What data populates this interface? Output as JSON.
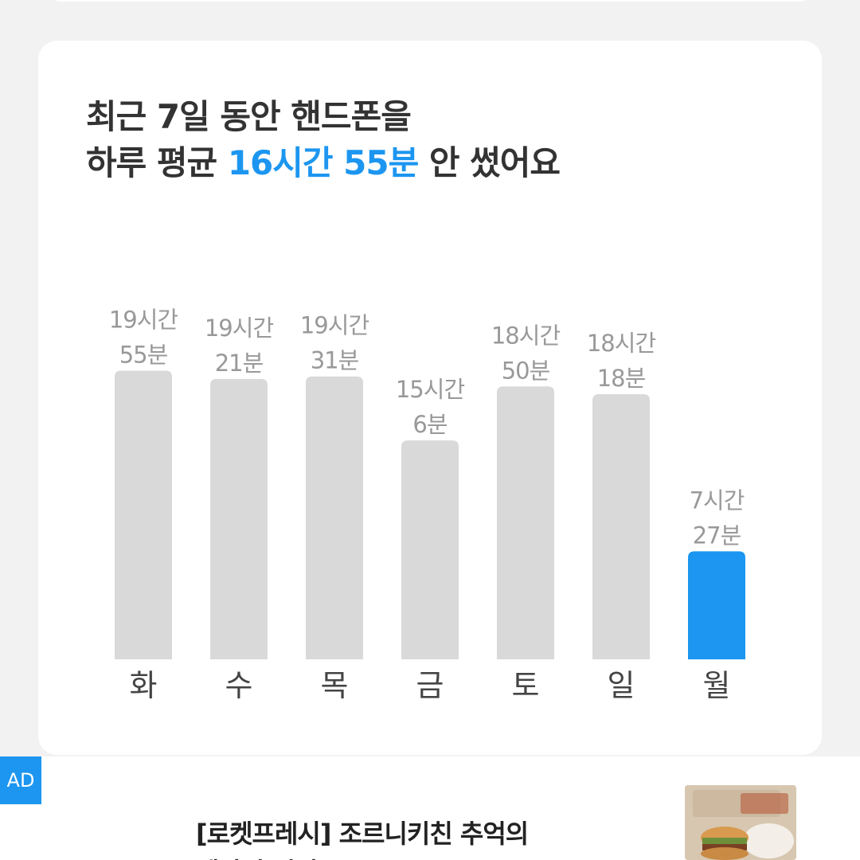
{
  "headline": {
    "line1": "최근 7일 동안 핸드폰을",
    "line2_prefix": "하루 평균 ",
    "line2_highlight": "16시간 55분",
    "line2_suffix": " 안 썼어요"
  },
  "colors": {
    "accent": "#1c96f0",
    "bar_default": "#d9d9d9",
    "bar_label": "#999999",
    "day_label": "#444444"
  },
  "chart_data": {
    "type": "bar",
    "categories": [
      "화",
      "수",
      "목",
      "금",
      "토",
      "일",
      "월"
    ],
    "values": [
      19.92,
      19.35,
      19.52,
      15.1,
      18.83,
      18.3,
      7.45
    ],
    "value_labels": [
      [
        "19시간",
        "55분"
      ],
      [
        "19시간",
        "21분"
      ],
      [
        "19시간",
        "31분"
      ],
      [
        "15시간",
        "6분"
      ],
      [
        "18시간",
        "50분"
      ],
      [
        "18시간",
        "18분"
      ],
      [
        "7시간",
        "27분"
      ]
    ],
    "highlight_index": 6,
    "ylim": [
      0,
      20
    ]
  },
  "ad": {
    "badge": "AD",
    "title": "[로켓프레시] 조르니키친 추억의",
    "title_line2": "옛날식 버거"
  }
}
